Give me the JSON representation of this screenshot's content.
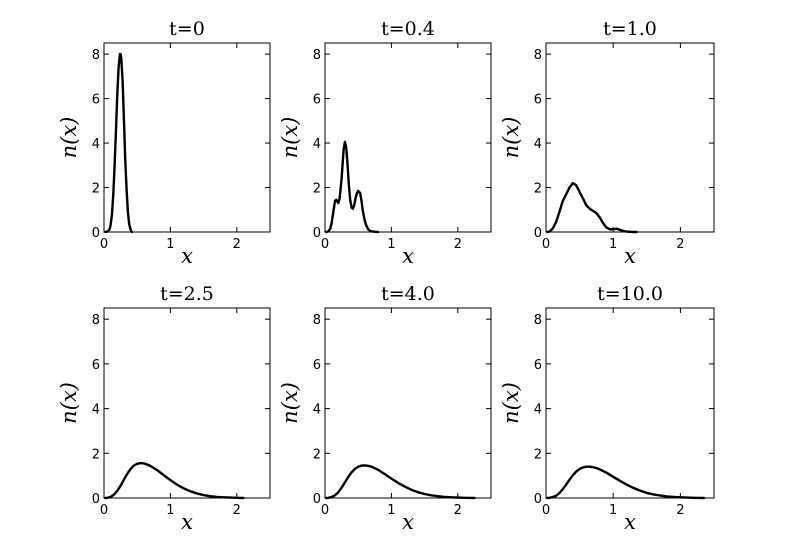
{
  "chart_data": [
    {
      "type": "line",
      "title": "t=0",
      "xlabel": "x",
      "ylabel": "n(x)",
      "xlim": [
        0,
        2.5
      ],
      "ylim": [
        0,
        8.5
      ],
      "xticks": [
        0,
        1,
        2
      ],
      "yticks": [
        0,
        2,
        4,
        6,
        8
      ],
      "series": [
        {
          "color": "#000000",
          "x": [
            0.02,
            0.05,
            0.08,
            0.1,
            0.12,
            0.14,
            0.16,
            0.18,
            0.2,
            0.22,
            0.24,
            0.25,
            0.26,
            0.28,
            0.3,
            0.32,
            0.34,
            0.36,
            0.38,
            0.4,
            0.42
          ],
          "y": [
            0,
            0.02,
            0.1,
            0.3,
            0.8,
            1.7,
            3.0,
            4.6,
            6.2,
            7.4,
            8.0,
            8.0,
            7.8,
            6.8,
            5.1,
            3.3,
            1.9,
            0.9,
            0.35,
            0.1,
            0
          ]
        }
      ]
    },
    {
      "type": "line",
      "title": "t=0.4",
      "xlabel": "x",
      "ylabel": "n(x)",
      "xlim": [
        0,
        2.5
      ],
      "ylim": [
        0,
        8.5
      ],
      "xticks": [
        0,
        1,
        2
      ],
      "yticks": [
        0,
        2,
        4,
        6,
        8
      ],
      "series": [
        {
          "color": "#000000",
          "x": [
            0.02,
            0.05,
            0.08,
            0.1,
            0.12,
            0.15,
            0.17,
            0.2,
            0.22,
            0.25,
            0.28,
            0.3,
            0.32,
            0.34,
            0.36,
            0.38,
            0.4,
            0.42,
            0.44,
            0.46,
            0.48,
            0.5,
            0.53,
            0.55,
            0.57,
            0.6,
            0.62,
            0.65,
            0.68,
            0.72,
            0.76,
            0.8
          ],
          "y": [
            0,
            0.03,
            0.15,
            0.4,
            0.8,
            1.4,
            1.45,
            1.3,
            1.5,
            2.4,
            3.7,
            4.05,
            3.8,
            3.0,
            2.1,
            1.45,
            1.1,
            1.05,
            1.2,
            1.5,
            1.75,
            1.85,
            1.75,
            1.4,
            0.95,
            0.5,
            0.3,
            0.12,
            0.05,
            0.02,
            0.01,
            0
          ]
        }
      ]
    },
    {
      "type": "line",
      "title": "t=1.0",
      "xlabel": "x",
      "ylabel": "n(x)",
      "xlim": [
        0,
        2.5
      ],
      "ylim": [
        0,
        8.5
      ],
      "xticks": [
        0,
        1,
        2
      ],
      "yticks": [
        0,
        2,
        4,
        6,
        8
      ],
      "series": [
        {
          "color": "#000000",
          "x": [
            0.02,
            0.05,
            0.1,
            0.15,
            0.2,
            0.25,
            0.3,
            0.35,
            0.4,
            0.45,
            0.5,
            0.55,
            0.6,
            0.65,
            0.7,
            0.75,
            0.8,
            0.85,
            0.9,
            0.95,
            1.0,
            1.05,
            1.1,
            1.15,
            1.2,
            1.25,
            1.3,
            1.35
          ],
          "y": [
            0,
            0.02,
            0.15,
            0.45,
            0.9,
            1.4,
            1.7,
            2.0,
            2.2,
            2.1,
            1.8,
            1.5,
            1.2,
            1.05,
            0.95,
            0.85,
            0.65,
            0.4,
            0.2,
            0.12,
            0.12,
            0.15,
            0.1,
            0.05,
            0.02,
            0.01,
            0,
            0
          ]
        }
      ]
    },
    {
      "type": "line",
      "title": "t=2.5",
      "xlabel": "x",
      "ylabel": "n(x)",
      "xlim": [
        0,
        2.5
      ],
      "ylim": [
        0,
        8.5
      ],
      "xticks": [
        0,
        1,
        2
      ],
      "yticks": [
        0,
        2,
        4,
        6,
        8
      ],
      "series": [
        {
          "color": "#000000",
          "x": [
            0.02,
            0.05,
            0.1,
            0.15,
            0.2,
            0.25,
            0.3,
            0.35,
            0.4,
            0.45,
            0.5,
            0.55,
            0.6,
            0.65,
            0.7,
            0.8,
            0.9,
            1.0,
            1.1,
            1.2,
            1.3,
            1.4,
            1.5,
            1.6,
            1.7,
            1.8,
            1.9,
            2.0,
            2.1
          ],
          "y": [
            0,
            0.01,
            0.05,
            0.15,
            0.32,
            0.55,
            0.82,
            1.08,
            1.3,
            1.45,
            1.53,
            1.56,
            1.55,
            1.5,
            1.43,
            1.25,
            1.02,
            0.8,
            0.6,
            0.43,
            0.3,
            0.2,
            0.13,
            0.08,
            0.05,
            0.03,
            0.02,
            0.01,
            0
          ]
        }
      ]
    },
    {
      "type": "line",
      "title": "t=4.0",
      "xlabel": "x",
      "ylabel": "n(x)",
      "xlim": [
        0,
        2.5
      ],
      "ylim": [
        0,
        8.5
      ],
      "xticks": [
        0,
        1,
        2
      ],
      "yticks": [
        0,
        2,
        4,
        6,
        8
      ],
      "series": [
        {
          "color": "#000000",
          "x": [
            0.02,
            0.05,
            0.1,
            0.15,
            0.2,
            0.25,
            0.3,
            0.35,
            0.4,
            0.45,
            0.5,
            0.55,
            0.6,
            0.65,
            0.7,
            0.8,
            0.9,
            1.0,
            1.1,
            1.2,
            1.3,
            1.4,
            1.5,
            1.6,
            1.7,
            1.8,
            1.9,
            2.0,
            2.1,
            2.2,
            2.25
          ],
          "y": [
            0,
            0.01,
            0.04,
            0.12,
            0.26,
            0.46,
            0.7,
            0.94,
            1.15,
            1.3,
            1.4,
            1.45,
            1.46,
            1.44,
            1.4,
            1.26,
            1.07,
            0.87,
            0.68,
            0.51,
            0.37,
            0.26,
            0.18,
            0.12,
            0.08,
            0.05,
            0.03,
            0.02,
            0.01,
            0.005,
            0
          ]
        }
      ]
    },
    {
      "type": "line",
      "title": "t=10.0",
      "xlabel": "x",
      "ylabel": "n(x)",
      "xlim": [
        0,
        2.5
      ],
      "ylim": [
        0,
        8.5
      ],
      "xticks": [
        0,
        1,
        2
      ],
      "yticks": [
        0,
        2,
        4,
        6,
        8
      ],
      "series": [
        {
          "color": "#000000",
          "x": [
            0.02,
            0.05,
            0.1,
            0.15,
            0.2,
            0.25,
            0.3,
            0.35,
            0.4,
            0.45,
            0.5,
            0.55,
            0.6,
            0.65,
            0.7,
            0.75,
            0.8,
            0.9,
            1.0,
            1.1,
            1.2,
            1.3,
            1.4,
            1.5,
            1.6,
            1.7,
            1.8,
            1.9,
            2.0,
            2.1,
            2.2,
            2.3,
            2.35
          ],
          "y": [
            0,
            0.01,
            0.04,
            0.1,
            0.22,
            0.4,
            0.6,
            0.82,
            1.02,
            1.18,
            1.3,
            1.37,
            1.4,
            1.4,
            1.38,
            1.34,
            1.28,
            1.13,
            0.95,
            0.77,
            0.6,
            0.45,
            0.33,
            0.23,
            0.16,
            0.11,
            0.07,
            0.05,
            0.03,
            0.02,
            0.01,
            0.005,
            0
          ]
        }
      ]
    }
  ]
}
